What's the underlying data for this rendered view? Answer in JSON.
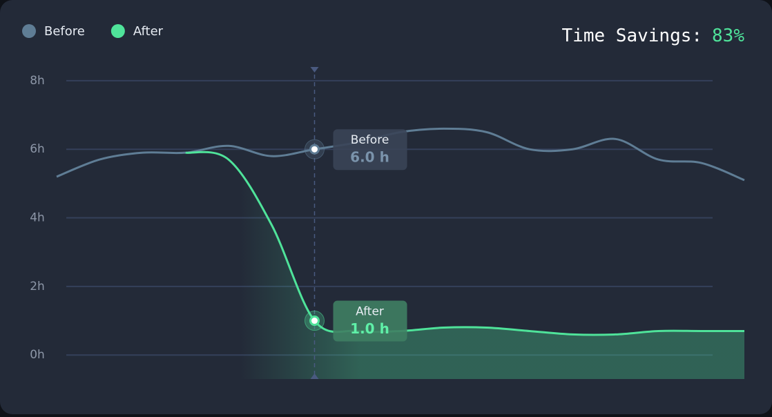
{
  "chart_data": {
    "type": "line",
    "title": "Time Savings:",
    "title_value": "83%",
    "categories": [
      null,
      null,
      null,
      null,
      null,
      null,
      null,
      null,
      null,
      null,
      null,
      null,
      null,
      null,
      null,
      null,
      null
    ],
    "series": [
      {
        "name": "Before",
        "color": "#5f7d95",
        "values": [
          5.2,
          5.7,
          5.9,
          5.9,
          6.1,
          5.8,
          6.0,
          6.2,
          6.5,
          6.6,
          6.5,
          6.0,
          6.0,
          6.3,
          5.7,
          5.6,
          5.1
        ],
        "value_labels": [
          null,
          null,
          null,
          null,
          null,
          null,
          "6.0 h",
          null,
          null,
          null,
          null,
          null,
          null,
          null,
          null,
          null,
          null
        ]
      },
      {
        "name": "After",
        "color": "#4fe39a",
        "values": [
          null,
          null,
          null,
          5.9,
          5.7,
          3.8,
          1.0,
          0.7,
          0.7,
          0.8,
          0.8,
          0.7,
          0.6,
          0.6,
          0.7,
          0.7,
          0.7
        ],
        "value_labels": [
          null,
          null,
          null,
          null,
          null,
          null,
          "1.0 h",
          null,
          null,
          null,
          null,
          null,
          null,
          null,
          null,
          null,
          null
        ]
      }
    ],
    "ylim": [
      -0.7,
      8.4
    ],
    "yticks": [
      {
        "value": 0,
        "label": "0h"
      },
      {
        "value": 2,
        "label": "2h"
      },
      {
        "value": 4,
        "label": "4h"
      },
      {
        "value": 6,
        "label": "6h"
      },
      {
        "value": 8,
        "label": "8h"
      }
    ],
    "grid": true,
    "legend": "top-left"
  }
}
